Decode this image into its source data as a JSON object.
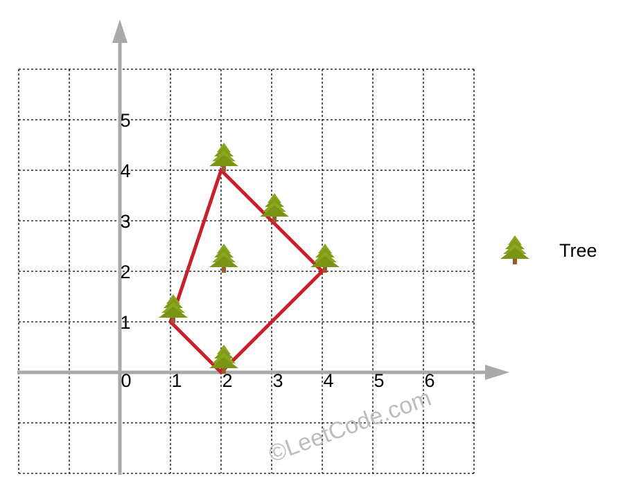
{
  "chart_data": {
    "type": "scatter",
    "x_ticks": [
      "0",
      "1",
      "2",
      "3",
      "4",
      "5",
      "6"
    ],
    "y_ticks": [
      "1",
      "2",
      "3",
      "4",
      "5"
    ],
    "grid": true,
    "grid_range": {
      "x": [
        -2,
        7
      ],
      "y": [
        -2,
        6
      ]
    },
    "points": [
      {
        "x": 1,
        "y": 1
      },
      {
        "x": 2,
        "y": 0
      },
      {
        "x": 2,
        "y": 2
      },
      {
        "x": 2,
        "y": 4
      },
      {
        "x": 3,
        "y": 3
      },
      {
        "x": 4,
        "y": 2
      }
    ],
    "hull": [
      [
        1,
        1
      ],
      [
        2,
        4
      ],
      [
        3,
        3
      ],
      [
        4,
        2
      ],
      [
        2,
        0
      ]
    ],
    "colors": {
      "hull": "#c8202a",
      "axis": "#a9a9a9",
      "grid": "#000000"
    },
    "point_icon": "tree-icon",
    "legend": {
      "label": "Tree",
      "position": "right"
    }
  },
  "watermark": "©LeetCode.com"
}
